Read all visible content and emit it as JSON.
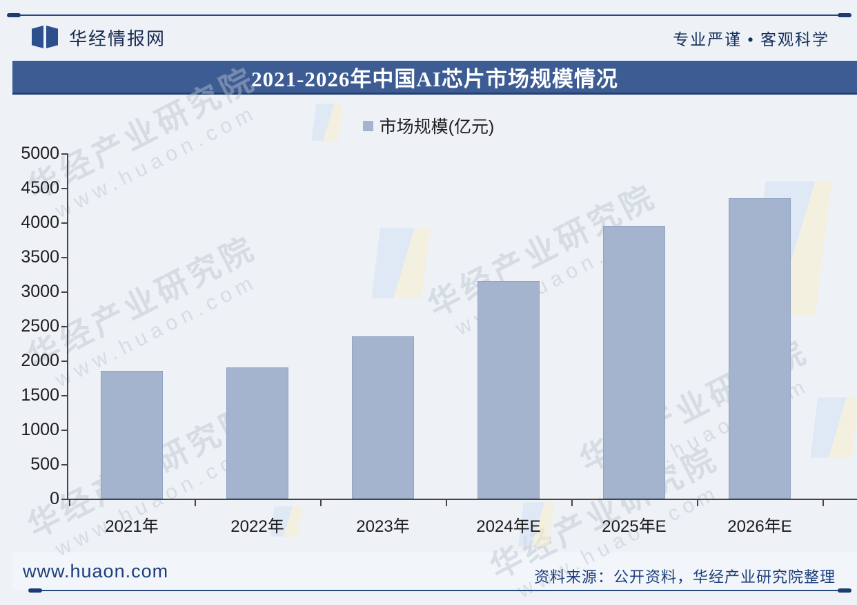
{
  "header": {
    "logo_text": "华经情报网",
    "slogan": "专业严谨 • 客观科学"
  },
  "chart_data": {
    "type": "bar",
    "title": "2021-2026年中国AI芯片市场规模情况",
    "series_name": "市场规模(亿元)",
    "categories": [
      "2021年",
      "2022年",
      "2023年",
      "2024年E",
      "2025年E",
      "2026年E"
    ],
    "values": [
      1850,
      1900,
      2350,
      3150,
      3950,
      4350
    ],
    "xlabel": "",
    "ylabel": "",
    "ylim": [
      0,
      5000
    ],
    "ytick_step": 500,
    "grid": false,
    "legend_position": "top-center",
    "bar_color": "#a4b4cf",
    "bar_border_color": "#8fa3c3"
  },
  "watermark": {
    "line1": "华经产业研究院",
    "line2": "www.huaon.com"
  },
  "footer": {
    "website": "www.huaon.com",
    "source": "资料来源：公开资料，华经产业研究院整理"
  },
  "colors": {
    "title_bar": "#3d5c94",
    "rule_line": "#27477f",
    "navy_text": "#1c3e7d",
    "axis": "#454545"
  }
}
